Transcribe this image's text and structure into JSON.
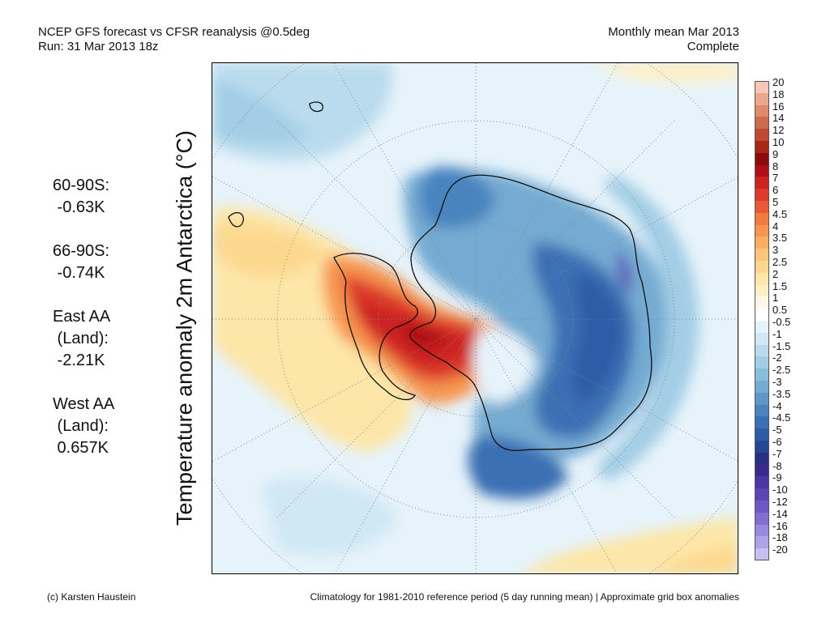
{
  "header": {
    "title_line1": "NCEP GFS forecast vs CFSR reanalysis @0.5deg",
    "title_line2": "Run: 31 Mar 2013 18z",
    "right_line1": "Monthly mean Mar 2013",
    "right_line2": "Complete"
  },
  "axis_label": "Temperature anomaly 2m Antarctica (°C)",
  "stats": [
    {
      "lines": [
        "60-90S:",
        " -0.63K"
      ]
    },
    {
      "lines": [
        "66-90S:",
        " -0.74K"
      ]
    },
    {
      "lines": [
        "East AA",
        " (Land):",
        " -2.21K"
      ]
    },
    {
      "lines": [
        "West AA",
        " (Land):",
        " 0.657K"
      ]
    }
  ],
  "colorbar": {
    "labels": [
      "20",
      "18",
      "16",
      "14",
      "12",
      "10",
      "9",
      "8",
      "7",
      "6",
      "5",
      "4.5",
      "4",
      "3.5",
      "3",
      "2.5",
      "2",
      "1.5",
      "1",
      "0.5",
      "-0.5",
      "-1",
      "-1.5",
      "-2",
      "-2.5",
      "-3",
      "-3.5",
      "-4",
      "-4.5",
      "-5",
      "-6",
      "-7",
      "-8",
      "-9",
      "-10",
      "-12",
      "-14",
      "-16",
      "-18",
      "-20"
    ],
    "colors": [
      "#f6c7b6",
      "#eaa88f",
      "#de8a6d",
      "#d06a4d",
      "#bf4a33",
      "#a82818",
      "#8d0b0b",
      "#b01015",
      "#cc2222",
      "#dd3a2c",
      "#e85a38",
      "#f07a40",
      "#f69550",
      "#f9ae62",
      "#fbc57a",
      "#fcd88f",
      "#fde6a8",
      "#fef0c5",
      "#fff8e6",
      "#ffffff",
      "#e6f3fa",
      "#d0e8f4",
      "#b9dbed",
      "#a2cde5",
      "#8abcdc",
      "#74abd2",
      "#5e98c8",
      "#4a84bf",
      "#3a6fb4",
      "#2f5ba6",
      "#264794",
      "#2a2f86",
      "#3b2a8c",
      "#4a36a0",
      "#5b46b5",
      "#6d58c6",
      "#8170d2",
      "#978ade",
      "#ada4e8",
      "#c6c0f2"
    ]
  },
  "footer": {
    "left": "(c) Karsten Haustein",
    "right": "Climatology for 1981-2010 reference period (5 day running mean) | Approximate grid box anomalies"
  }
}
